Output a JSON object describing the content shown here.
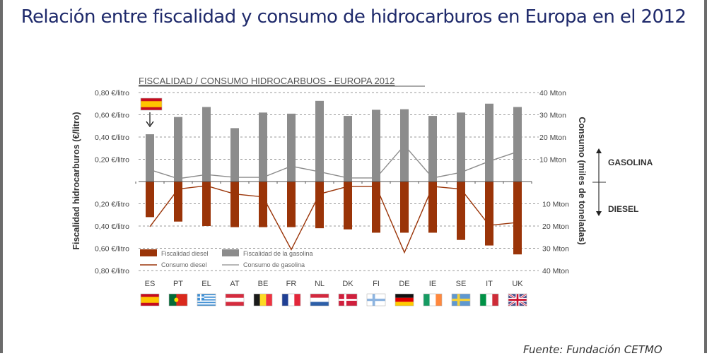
{
  "page": {
    "title": "Relación entre fiscalidad y consumo de hidrocarburos en Europa en el 2012",
    "source": "Fuente: Fundación CETMO"
  },
  "colors": {
    "title": "#1f2a6b",
    "gasoline_bar": "#8c8c8c",
    "diesel_bar": "#9a3408",
    "diesel_line": "#9a3408",
    "gasoline_line": "#8c8c8c"
  },
  "chart_data": {
    "type": "bar",
    "title": "FISCALIDAD / CONSUMO HIDROCARBUOS - EUROPA 2012",
    "categories": [
      "ES",
      "PT",
      "EL",
      "AT",
      "BE",
      "FR",
      "NL",
      "DK",
      "FI",
      "DE",
      "IE",
      "SE",
      "IT",
      "UK"
    ],
    "flags": [
      "es",
      "pt",
      "el",
      "at",
      "be",
      "fr",
      "nl",
      "dk",
      "fi",
      "de",
      "ie",
      "se",
      "it",
      "uk"
    ],
    "highlight_category": "ES",
    "ylabel_left": "Fiscalidad  hidrocarburos (€/litro)",
    "ylabel_right": "Consumo (miles de toneladas)",
    "yticks_left_top": [
      "0,80 €/litro",
      "0,60 €/litro",
      "0,40 €/litro",
      "0,20 €/litro"
    ],
    "yticks_left_bottom": [
      "0,20 €/litro",
      "0,40 €/litro",
      "0,60 €/litro",
      "0,80 €/litro"
    ],
    "yticks_right_top": [
      "40 Mton",
      "30 Mton",
      "20 Mton",
      "10 Mton"
    ],
    "yticks_right_bottom": [
      "10 Mton",
      "20 Mton",
      "30 Mton",
      "40 Mton"
    ],
    "ylim_left": [
      0,
      0.8
    ],
    "ylim_right": [
      0,
      40
    ],
    "direction_labels": {
      "up": "GASOLINA",
      "down": "DIESEL"
    },
    "grid": true,
    "legend_position": "bottom-left",
    "series": [
      {
        "name": "Fiscalidad diesel",
        "kind": "bar",
        "direction": "down",
        "unit": "€/litro",
        "values": [
          0.32,
          0.36,
          0.4,
          0.41,
          0.41,
          0.41,
          0.42,
          0.43,
          0.46,
          0.46,
          0.46,
          0.525,
          0.575,
          0.655
        ]
      },
      {
        "name": "Fiscalidad de la gasolina",
        "legend_label": "Fiscalidad de la gasolina",
        "kind": "bar",
        "direction": "up",
        "unit": "€/litro",
        "values": [
          0.425,
          0.58,
          0.67,
          0.48,
          0.62,
          0.61,
          0.725,
          0.59,
          0.645,
          0.65,
          0.59,
          0.62,
          0.7,
          0.67
        ]
      },
      {
        "name": "Consumo diesel",
        "kind": "line",
        "direction": "down",
        "unit": "Mton",
        "values": [
          20.3,
          3.4,
          1.9,
          5.6,
          6.9,
          30.6,
          5.6,
          2.2,
          2.2,
          31.9,
          2.2,
          3.4,
          19.7,
          18.4
        ]
      },
      {
        "name": "Consumo de gasolina",
        "kind": "line",
        "direction": "up",
        "unit": "Mton",
        "values": [
          5.3,
          1.3,
          3.1,
          1.9,
          1.9,
          6.9,
          4.4,
          1.6,
          1.6,
          16.3,
          1.6,
          4.1,
          9.1,
          13.4
        ]
      }
    ]
  }
}
